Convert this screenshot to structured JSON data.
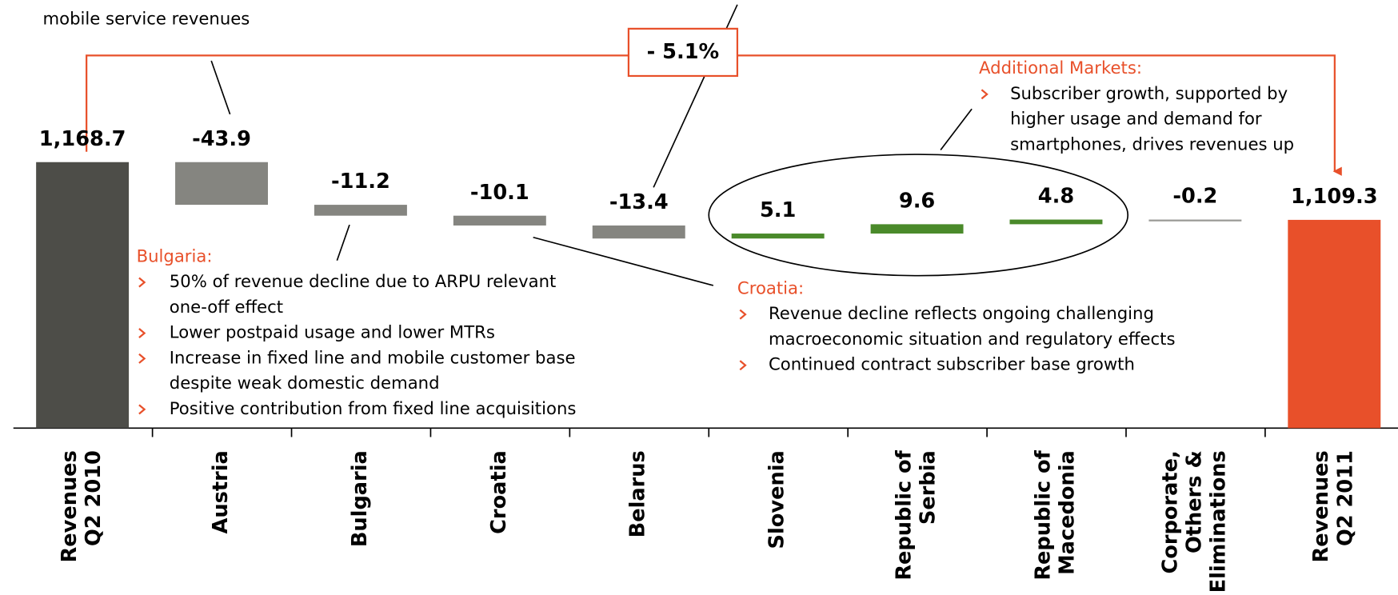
{
  "chart_data": {
    "type": "waterfall",
    "categories": [
      "Revenues\nQ2 2010",
      "Austria",
      "Bulgaria",
      "Croatia",
      "Belarus",
      "Slovenia",
      "Republic of\nSerbia",
      "Republic of\nMacedonia",
      "Corporate,\nOthers &\nEliminations",
      "Revenues\nQ2 2011"
    ],
    "values": [
      1168.7,
      -43.9,
      -11.2,
      -10.1,
      -13.4,
      5.1,
      9.6,
      4.8,
      -0.2,
      1109.3
    ],
    "value_labels": [
      "1,168.7",
      "-43.9",
      "-11.2",
      "-10.1",
      "-13.4",
      "5.1",
      "9.6",
      "4.8",
      "-0.2",
      "1,109.3"
    ],
    "totals": [
      0,
      9
    ],
    "colors": [
      "#4d4d48",
      "#858580",
      "#858580",
      "#858580",
      "#858580",
      "#4a8a2a",
      "#4a8a2a",
      "#4a8a2a",
      "#9a9a96",
      "#e8502a"
    ],
    "ylim": [
      895,
      1170
    ],
    "change_label": "- 5.1%",
    "annotations": {
      "austria": "mobile service revenues",
      "bulgaria": {
        "title": "Bulgaria:",
        "bullets": [
          [
            "50% of revenue decline due to ARPU relevant",
            "one-off effect"
          ],
          [
            "Lower postpaid usage and lower MTRs"
          ],
          [
            "Increase in fixed line and mobile customer base",
            "despite weak domestic demand"
          ],
          [
            "Positive contribution from fixed line acquisitions"
          ]
        ]
      },
      "croatia": {
        "title": "Croatia:",
        "bullets": [
          [
            "Revenue decline reflects ongoing challenging",
            "macroeconomic situation and regulatory effects"
          ],
          [
            "Continued contract subscriber base growth"
          ]
        ]
      },
      "additional": {
        "title": "Additional Markets:",
        "bullets": [
          [
            "Subscriber growth, supported by",
            "higher usage and demand for",
            "smartphones, drives revenues up"
          ]
        ]
      }
    }
  }
}
